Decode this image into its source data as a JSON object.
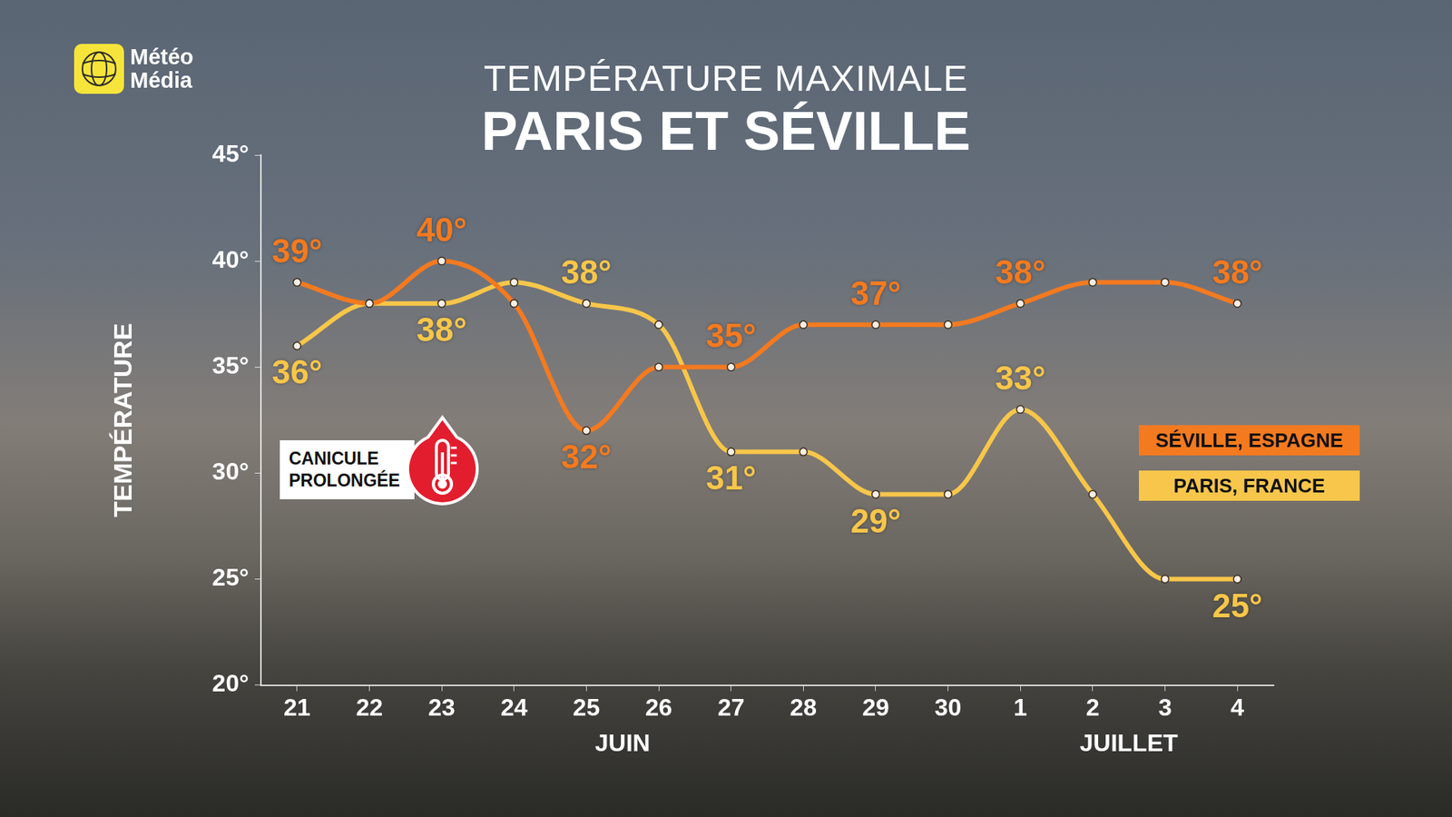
{
  "chart_data": {
    "type": "line",
    "brand": "Météo Média",
    "title": "TEMPÉRATURE MAXIMALE",
    "subtitle": "PARIS ET SÉVILLE",
    "y_label": "TEMPÉRATURE",
    "annotation": "CANICULE PROLONGÉE",
    "categories": [
      "21",
      "22",
      "23",
      "24",
      "25",
      "26",
      "27",
      "28",
      "29",
      "30",
      "1",
      "2",
      "3",
      "4"
    ],
    "x_groups": [
      {
        "label": "JUIN",
        "categories": [
          "21",
          "22",
          "23",
          "24",
          "25",
          "26",
          "27",
          "28",
          "29",
          "30"
        ]
      },
      {
        "label": "JUILLET",
        "categories": [
          "1",
          "2",
          "3",
          "4"
        ]
      }
    ],
    "series": [
      {
        "name": "SÉVILLE, ESPAGNE",
        "color": "#f47a1f",
        "marker": "circle",
        "values": [
          39,
          38,
          40,
          38,
          32,
          35,
          35,
          37,
          37,
          37,
          38,
          39,
          39,
          38
        ],
        "value_labels": [
          "39°",
          null,
          "40°",
          null,
          "32°",
          null,
          "35°",
          null,
          "37°",
          null,
          "38°",
          null,
          null,
          "38°"
        ]
      },
      {
        "name": "PARIS, FRANCE",
        "color": "#f7c64a",
        "marker": "circle",
        "values": [
          36,
          38,
          38,
          39,
          38,
          37,
          31,
          31,
          29,
          29,
          33,
          29,
          25,
          25
        ],
        "value_labels": [
          "36°",
          null,
          "38°",
          null,
          "38°",
          null,
          "31°",
          null,
          "29°",
          null,
          "33°",
          null,
          null,
          "25°"
        ]
      }
    ],
    "ylim": [
      20,
      45
    ],
    "yticks": [
      {
        "value": 20,
        "label": "20°"
      },
      {
        "value": 25,
        "label": "25°"
      },
      {
        "value": 30,
        "label": "30°"
      },
      {
        "value": 35,
        "label": "35°"
      },
      {
        "value": 40,
        "label": "40°"
      },
      {
        "value": 45,
        "label": "45°"
      }
    ],
    "grid": false,
    "legend": "right",
    "data_labels": true
  }
}
